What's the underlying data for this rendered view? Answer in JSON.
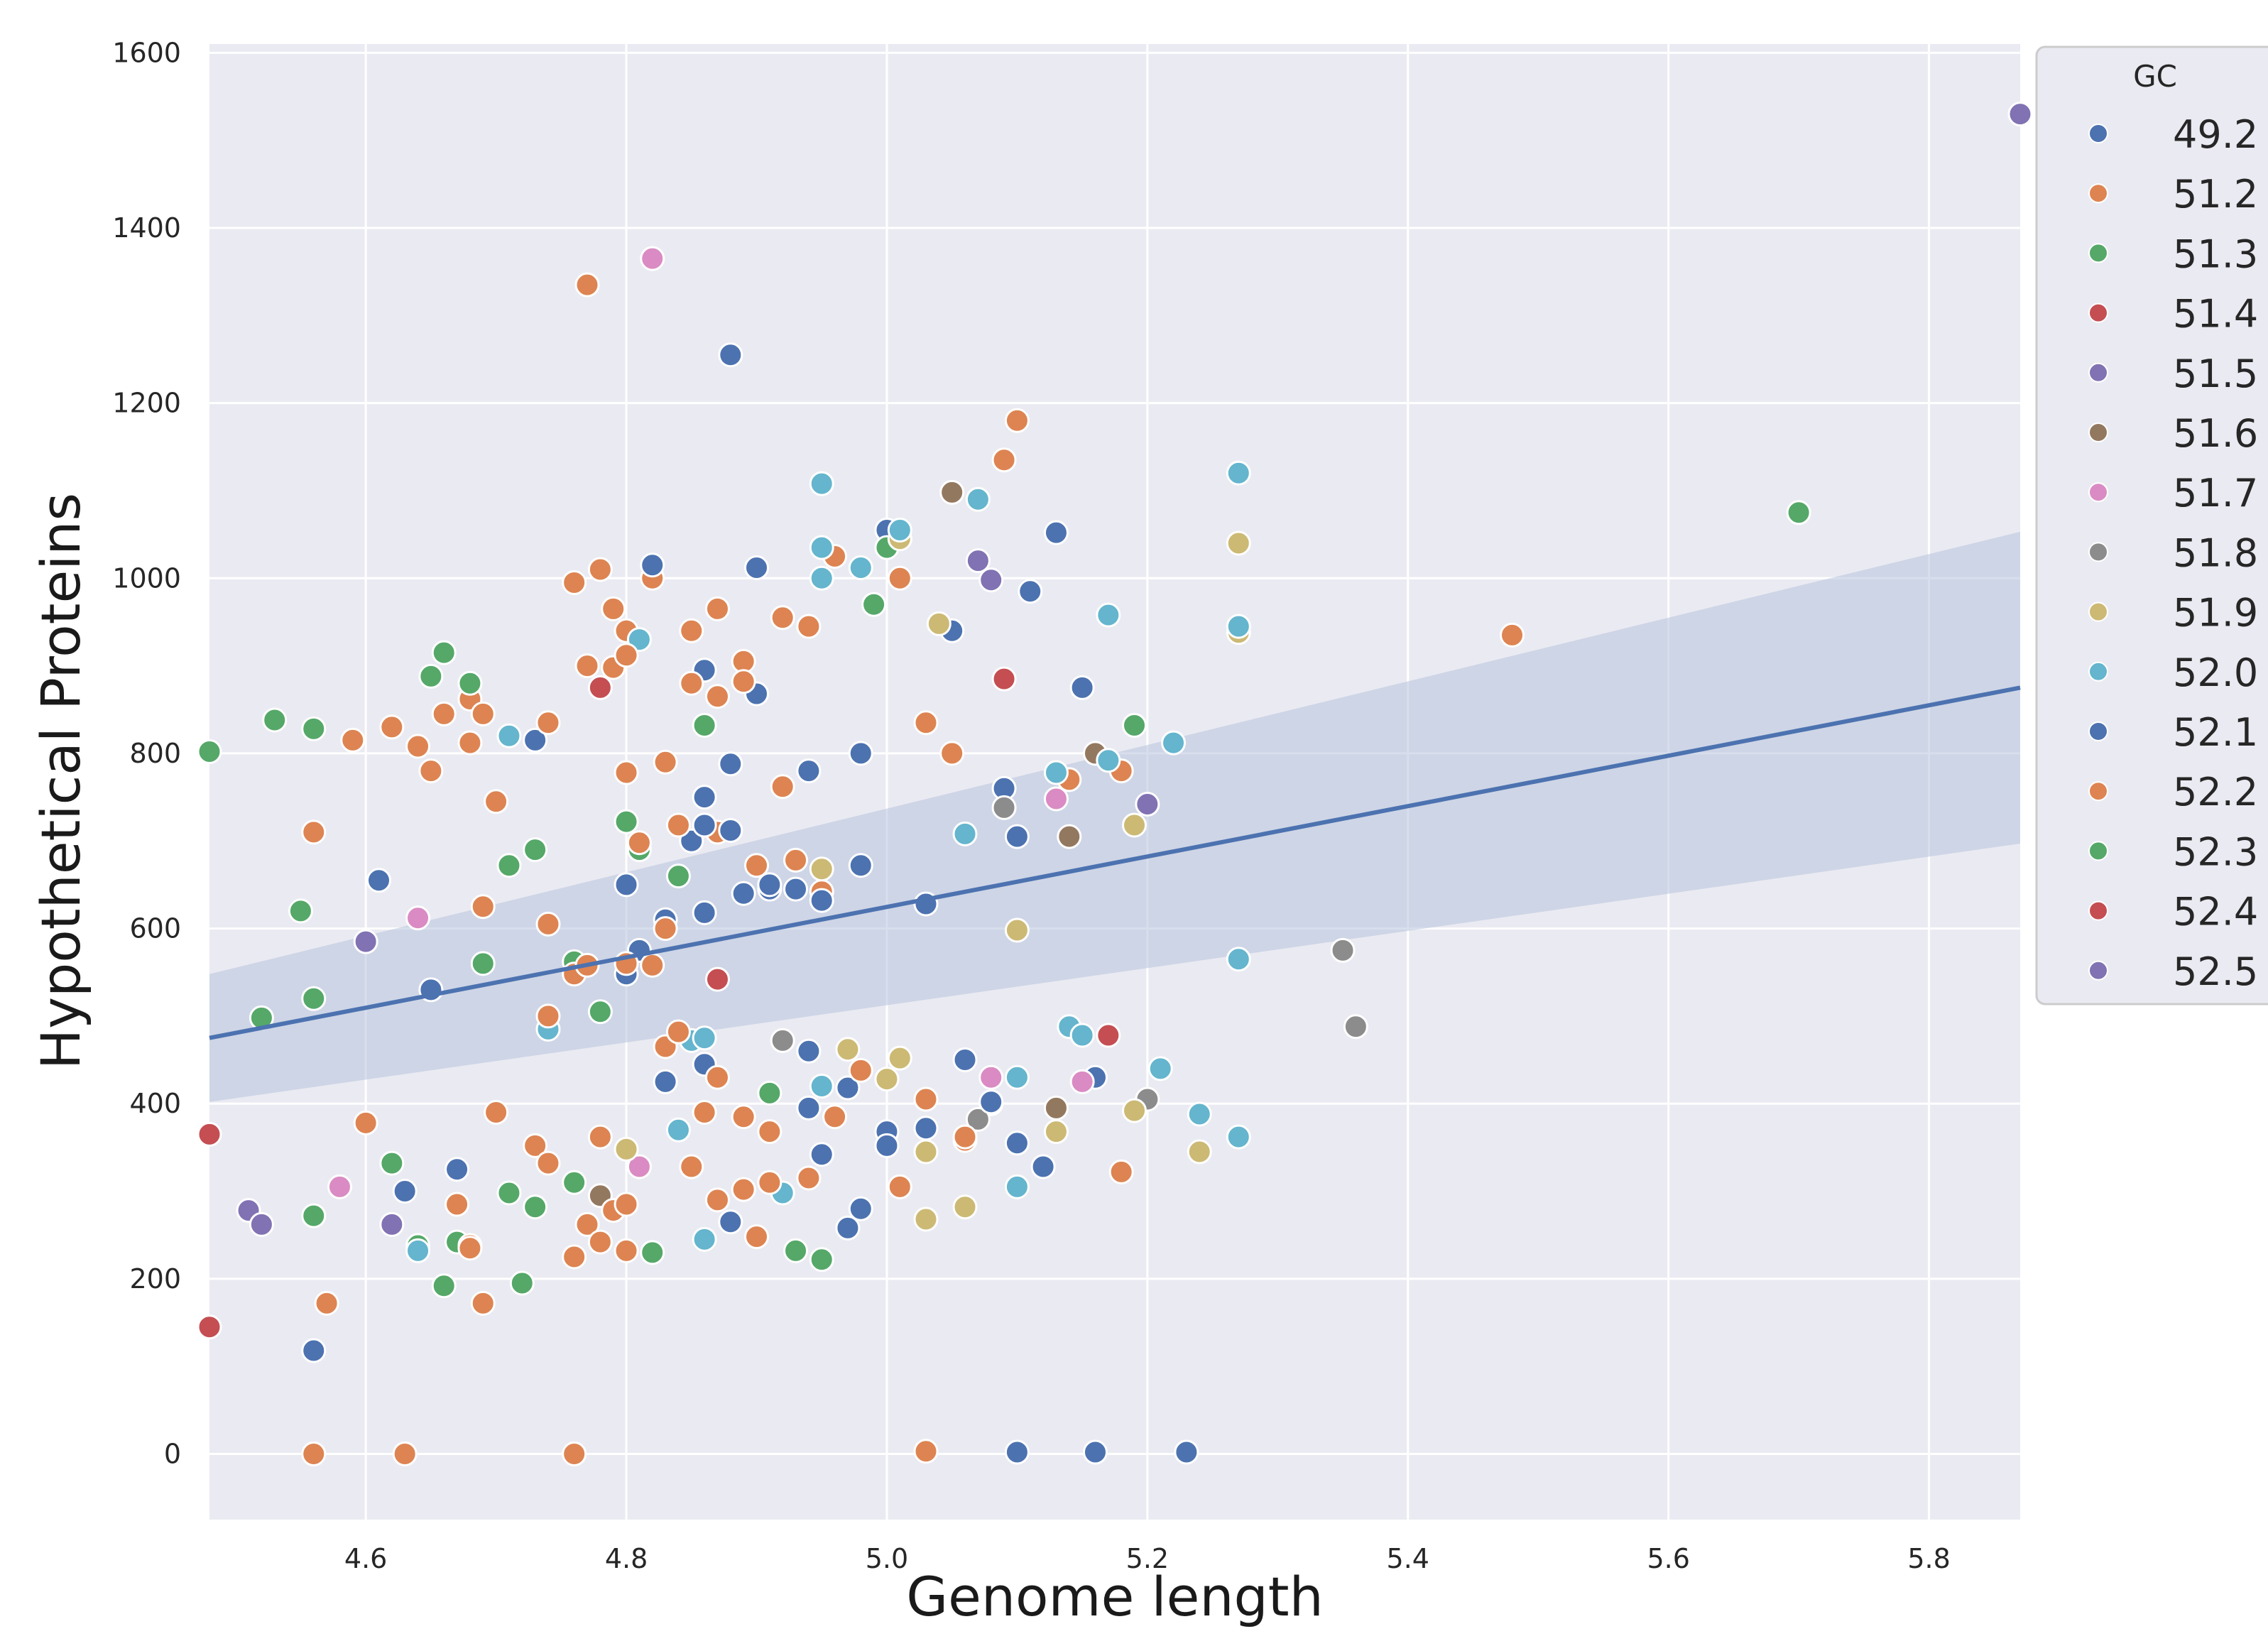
{
  "chart_data": {
    "type": "scatter",
    "title": "",
    "xlabel": "Genome length",
    "ylabel": "Hypothetical Proteins",
    "xlim": [
      4.48,
      5.87
    ],
    "ylim": [
      -75,
      1610
    ],
    "xticks": [
      "4.6",
      "4.8",
      "5.0",
      "5.2",
      "5.4",
      "5.6",
      "5.8"
    ],
    "yticks": [
      "0",
      "200",
      "400",
      "600",
      "800",
      "1000",
      "1200",
      "1400",
      "1600"
    ],
    "grid": true,
    "legend": {
      "title": "GC",
      "placement": "right",
      "entries": [
        {
          "label": "49.2",
          "color": "#4c72b0"
        },
        {
          "label": "51.2",
          "color": "#dd8452"
        },
        {
          "label": "51.3",
          "color": "#55a868"
        },
        {
          "label": "51.4",
          "color": "#c44e52"
        },
        {
          "label": "51.5",
          "color": "#8172b3"
        },
        {
          "label": "51.6",
          "color": "#937860"
        },
        {
          "label": "51.7",
          "color": "#da8bc3"
        },
        {
          "label": "51.8",
          "color": "#8c8c8c"
        },
        {
          "label": "51.9",
          "color": "#ccb974"
        },
        {
          "label": "52.0",
          "color": "#64b5cd"
        },
        {
          "label": "52.1",
          "color": "#4c72b0"
        },
        {
          "label": "52.2",
          "color": "#dd8452"
        },
        {
          "label": "52.3",
          "color": "#55a868"
        },
        {
          "label": "52.4",
          "color": "#c44e52"
        },
        {
          "label": "52.5",
          "color": "#8172b3"
        }
      ]
    },
    "regression": {
      "x": [
        4.48,
        5.87
      ],
      "y": [
        475,
        875
      ],
      "ci_low": [
        402,
        697
      ],
      "ci_high": [
        548,
        1053
      ],
      "color": "#4c72b0",
      "band_color": "#b7c3dd"
    },
    "series": [
      {
        "name": "49.2",
        "color": "#4c72b0",
        "points": [
          [
            4.61,
            655
          ],
          [
            4.65,
            530
          ],
          [
            4.73,
            815
          ],
          [
            4.8,
            650
          ],
          [
            4.83,
            610
          ],
          [
            4.85,
            700
          ],
          [
            4.88,
            1255
          ],
          [
            4.9,
            1012
          ],
          [
            4.91,
            645
          ],
          [
            4.94,
            780
          ],
          [
            4.98,
            800
          ],
          [
            5.0,
            1055
          ],
          [
            5.05,
            940
          ],
          [
            5.09,
            760
          ],
          [
            5.1,
            705
          ],
          [
            5.11,
            985
          ],
          [
            5.13,
            1052
          ],
          [
            5.15,
            875
          ],
          [
            4.63,
            300
          ],
          [
            4.67,
            325
          ],
          [
            4.83,
            425
          ],
          [
            4.86,
            445
          ],
          [
            4.88,
            265
          ],
          [
            4.92,
            472
          ],
          [
            4.94,
            395
          ],
          [
            4.97,
            418
          ],
          [
            5.0,
            368
          ],
          [
            5.03,
            372
          ],
          [
            5.06,
            450
          ],
          [
            5.08,
            400
          ],
          [
            5.1,
            355
          ],
          [
            5.12,
            328
          ],
          [
            5.16,
            430
          ],
          [
            4.56,
            118
          ],
          [
            5.1,
            2
          ],
          [
            5.16,
            2
          ],
          [
            5.23,
            2
          ]
        ]
      },
      {
        "name": "51.2",
        "color": "#dd8452",
        "points": [
          [
            4.59,
            815
          ],
          [
            4.62,
            830
          ],
          [
            4.64,
            808
          ],
          [
            4.66,
            845
          ],
          [
            4.68,
            862
          ],
          [
            4.69,
            845
          ],
          [
            4.7,
            745
          ],
          [
            4.74,
            605
          ],
          [
            4.76,
            995
          ],
          [
            4.78,
            1010
          ],
          [
            4.79,
            965
          ],
          [
            4.8,
            940
          ],
          [
            4.82,
            1000
          ],
          [
            4.85,
            940
          ],
          [
            4.87,
            965
          ],
          [
            4.89,
            905
          ],
          [
            4.92,
            955
          ],
          [
            4.94,
            945
          ],
          [
            4.96,
            1025
          ],
          [
            5.01,
            1000
          ],
          [
            5.03,
            835
          ],
          [
            5.05,
            800
          ],
          [
            5.09,
            1135
          ],
          [
            5.1,
            1180
          ],
          [
            5.14,
            770
          ],
          [
            5.18,
            780
          ],
          [
            4.77,
            1335
          ],
          [
            5.48,
            935
          ],
          [
            4.56,
            710
          ],
          [
            4.69,
            625
          ],
          [
            4.8,
            778
          ],
          [
            4.83,
            790
          ],
          [
            4.87,
            710
          ],
          [
            4.9,
            672
          ],
          [
            4.93,
            678
          ],
          [
            4.95,
            642
          ],
          [
            4.6,
            378
          ],
          [
            4.67,
            285
          ],
          [
            4.7,
            390
          ],
          [
            4.73,
            352
          ],
          [
            4.76,
            225
          ],
          [
            4.78,
            362
          ],
          [
            4.8,
            232
          ],
          [
            4.85,
            328
          ],
          [
            4.87,
            290
          ],
          [
            4.89,
            385
          ],
          [
            4.91,
            368
          ],
          [
            4.94,
            315
          ],
          [
            4.98,
            438
          ],
          [
            5.01,
            305
          ],
          [
            5.03,
            405
          ],
          [
            5.06,
            358
          ],
          [
            5.18,
            322
          ],
          [
            4.57,
            172
          ],
          [
            4.69,
            172
          ],
          [
            4.56,
            0
          ],
          [
            4.63,
            0
          ],
          [
            4.76,
            0
          ],
          [
            5.03,
            3
          ]
        ]
      },
      {
        "name": "51.3",
        "color": "#55a868",
        "points": [
          [
            4.48,
            802
          ],
          [
            4.53,
            838
          ],
          [
            4.56,
            828
          ],
          [
            4.65,
            888
          ],
          [
            4.66,
            915
          ],
          [
            4.68,
            880
          ],
          [
            4.71,
            672
          ],
          [
            4.73,
            690
          ],
          [
            4.8,
            722
          ],
          [
            4.81,
            690
          ],
          [
            4.84,
            660
          ],
          [
            4.86,
            832
          ],
          [
            4.99,
            970
          ],
          [
            5.0,
            1035
          ],
          [
            5.19,
            832
          ],
          [
            5.7,
            1075
          ],
          [
            4.55,
            620
          ],
          [
            4.56,
            520
          ],
          [
            4.52,
            498
          ],
          [
            4.69,
            560
          ],
          [
            4.76,
            562
          ],
          [
            4.78,
            505
          ],
          [
            4.62,
            332
          ],
          [
            4.64,
            238
          ],
          [
            4.67,
            242
          ],
          [
            4.71,
            298
          ],
          [
            4.73,
            282
          ],
          [
            4.76,
            310
          ],
          [
            4.82,
            230
          ],
          [
            4.91,
            412
          ],
          [
            4.93,
            232
          ],
          [
            4.95,
            222
          ],
          [
            4.56,
            272
          ],
          [
            4.66,
            192
          ],
          [
            4.72,
            195
          ]
        ]
      },
      {
        "name": "51.4",
        "color": "#c44e52",
        "points": [
          [
            4.78,
            875
          ],
          [
            4.87,
            542
          ],
          [
            5.09,
            885
          ],
          [
            5.17,
            478
          ],
          [
            4.48,
            365
          ],
          [
            4.48,
            145
          ]
        ]
      },
      {
        "name": "51.5",
        "color": "#8172b3",
        "points": [
          [
            4.6,
            585
          ],
          [
            5.07,
            1020
          ],
          [
            5.08,
            998
          ],
          [
            5.2,
            742
          ],
          [
            4.62,
            262
          ],
          [
            4.51,
            278
          ],
          [
            4.52,
            262
          ],
          [
            5.87,
            1530
          ]
        ]
      },
      {
        "name": "51.6",
        "color": "#937860",
        "points": [
          [
            5.05,
            1098
          ],
          [
            5.14,
            705
          ],
          [
            5.16,
            800
          ],
          [
            5.13,
            395
          ],
          [
            4.78,
            295
          ]
        ]
      },
      {
        "name": "51.7",
        "color": "#da8bc3",
        "points": [
          [
            4.82,
            1365
          ],
          [
            4.64,
            612
          ],
          [
            5.13,
            748
          ],
          [
            5.08,
            430
          ],
          [
            5.15,
            425
          ],
          [
            4.58,
            305
          ],
          [
            4.81,
            328
          ]
        ]
      },
      {
        "name": "51.8",
        "color": "#8c8c8c",
        "points": [
          [
            5.09,
            738
          ],
          [
            4.92,
            472
          ],
          [
            5.07,
            382
          ],
          [
            5.2,
            405
          ],
          [
            5.35,
            575
          ],
          [
            5.36,
            488
          ]
        ]
      },
      {
        "name": "51.9",
        "color": "#ccb974",
        "points": [
          [
            5.01,
            1045
          ],
          [
            5.04,
            948
          ],
          [
            4.95,
            668
          ],
          [
            4.97,
            462
          ],
          [
            5.01,
            452
          ],
          [
            5.0,
            428
          ],
          [
            5.03,
            345
          ],
          [
            5.03,
            268
          ],
          [
            5.06,
            282
          ],
          [
            5.1,
            598
          ],
          [
            5.13,
            368
          ],
          [
            5.19,
            718
          ],
          [
            5.19,
            392
          ],
          [
            5.24,
            345
          ],
          [
            5.27,
            1040
          ],
          [
            5.27,
            938
          ],
          [
            4.8,
            348
          ]
        ]
      },
      {
        "name": "52.0",
        "color": "#64b5cd",
        "points": [
          [
            4.95,
            1108
          ],
          [
            4.95,
            1035
          ],
          [
            4.95,
            1000
          ],
          [
            4.98,
            1012
          ],
          [
            5.01,
            1055
          ],
          [
            5.07,
            1090
          ],
          [
            5.17,
            958
          ],
          [
            5.22,
            812
          ],
          [
            5.27,
            1120
          ],
          [
            5.27,
            945
          ],
          [
            4.71,
            820
          ],
          [
            4.81,
            930
          ],
          [
            5.06,
            708
          ],
          [
            5.13,
            778
          ],
          [
            5.17,
            792
          ],
          [
            4.74,
            485
          ],
          [
            4.85,
            472
          ],
          [
            4.86,
            475
          ],
          [
            4.84,
            370
          ],
          [
            4.86,
            245
          ],
          [
            4.92,
            298
          ],
          [
            4.95,
            420
          ],
          [
            5.1,
            430
          ],
          [
            5.1,
            305
          ],
          [
            5.14,
            488
          ],
          [
            5.15,
            478
          ],
          [
            5.21,
            440
          ],
          [
            5.24,
            388
          ],
          [
            5.27,
            565
          ],
          [
            5.27,
            362
          ],
          [
            4.64,
            232
          ]
        ]
      },
      {
        "name": "52.1",
        "color": "#4c72b0",
        "points": [
          [
            4.82,
            1015
          ],
          [
            4.86,
            895
          ],
          [
            4.88,
            712
          ],
          [
            4.88,
            788
          ],
          [
            4.89,
            640
          ],
          [
            4.9,
            868
          ],
          [
            4.93,
            645
          ],
          [
            4.95,
            632
          ],
          [
            4.98,
            672
          ],
          [
            5.03,
            628
          ],
          [
            4.81,
            575
          ],
          [
            4.86,
            750
          ],
          [
            4.86,
            718
          ],
          [
            4.94,
            460
          ],
          [
            4.95,
            342
          ],
          [
            4.97,
            258
          ],
          [
            4.98,
            280
          ],
          [
            5.0,
            352
          ],
          [
            5.08,
            402
          ],
          [
            4.86,
            618
          ],
          [
            4.8,
            548
          ],
          [
            4.91,
            650
          ]
        ]
      },
      {
        "name": "52.2",
        "color": "#dd8452",
        "points": [
          [
            4.74,
            835
          ],
          [
            4.77,
            900
          ],
          [
            4.79,
            898
          ],
          [
            4.8,
            912
          ],
          [
            4.85,
            880
          ],
          [
            4.87,
            865
          ],
          [
            4.89,
            882
          ],
          [
            4.92,
            762
          ],
          [
            4.65,
            780
          ],
          [
            4.68,
            812
          ],
          [
            4.81,
            698
          ],
          [
            4.83,
            600
          ],
          [
            4.84,
            718
          ],
          [
            4.76,
            548
          ],
          [
            4.77,
            558
          ],
          [
            4.8,
            560
          ],
          [
            4.82,
            558
          ],
          [
            4.74,
            500
          ],
          [
            4.74,
            332
          ],
          [
            4.77,
            262
          ],
          [
            4.78,
            242
          ],
          [
            4.79,
            278
          ],
          [
            4.8,
            285
          ],
          [
            4.83,
            465
          ],
          [
            4.84,
            482
          ],
          [
            4.86,
            390
          ],
          [
            4.87,
            430
          ],
          [
            4.89,
            302
          ],
          [
            4.9,
            248
          ],
          [
            4.91,
            310
          ],
          [
            4.96,
            385
          ],
          [
            5.06,
            362
          ],
          [
            4.68,
            238
          ],
          [
            4.68,
            235
          ]
        ]
      }
    ]
  }
}
